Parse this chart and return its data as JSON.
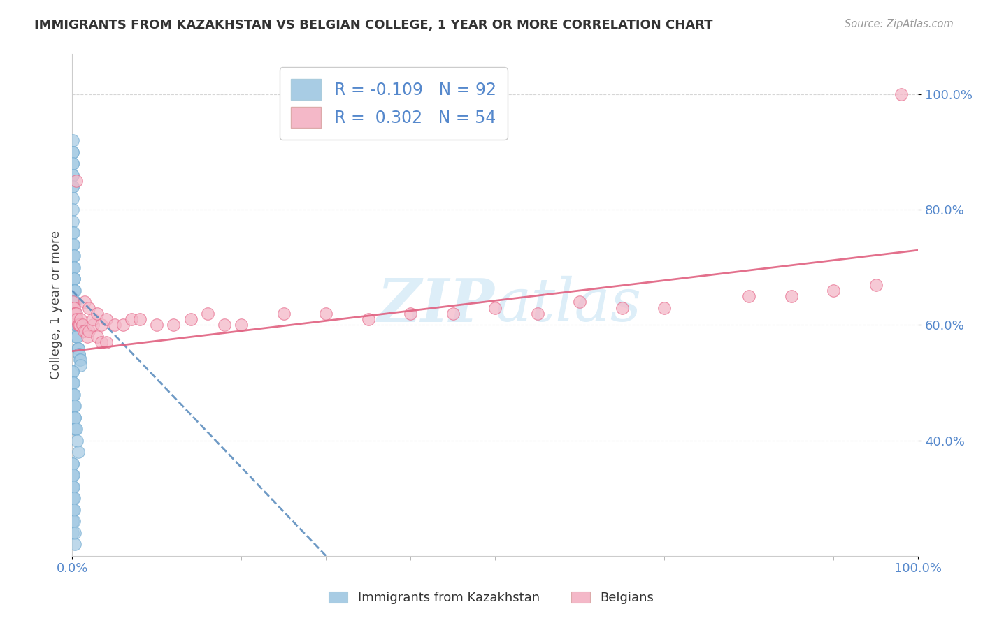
{
  "title": "IMMIGRANTS FROM KAZAKHSTAN VS BELGIAN COLLEGE, 1 YEAR OR MORE CORRELATION CHART",
  "source": "Source: ZipAtlas.com",
  "ylabel": "College, 1 year or more",
  "legend_label1": "Immigrants from Kazakhstan",
  "legend_label2": "Belgians",
  "R1": -0.109,
  "N1": 92,
  "R2": 0.302,
  "N2": 54,
  "color_blue": "#a8cce4",
  "color_blue_edge": "#7ab0d4",
  "color_pink": "#f4b8c8",
  "color_pink_edge": "#e87090",
  "color_blue_line": "#5588bb",
  "color_pink_line": "#e06080",
  "watermark_color": "#ddeef8",
  "tick_color": "#5588cc",
  "title_color": "#333333",
  "source_color": "#999999",
  "grid_color": "#cccccc",
  "xlim": [
    0.0,
    1.0
  ],
  "ylim": [
    0.2,
    1.07
  ],
  "yticks": [
    0.4,
    0.6,
    0.8,
    1.0
  ],
  "ytick_labels": [
    "40.0%",
    "60.0%",
    "80.0%",
    "100.0%"
  ],
  "blue_scatter_x": [
    0.0005,
    0.0005,
    0.0005,
    0.0005,
    0.0005,
    0.001,
    0.001,
    0.001,
    0.001,
    0.001,
    0.001,
    0.001,
    0.001,
    0.001,
    0.001,
    0.001,
    0.0015,
    0.0015,
    0.0015,
    0.0015,
    0.0015,
    0.0015,
    0.002,
    0.002,
    0.002,
    0.002,
    0.002,
    0.0025,
    0.0025,
    0.0025,
    0.003,
    0.003,
    0.003,
    0.0035,
    0.0035,
    0.004,
    0.004,
    0.0045,
    0.005,
    0.005,
    0.0055,
    0.006,
    0.0065,
    0.007,
    0.0075,
    0.008,
    0.0085,
    0.009,
    0.0095,
    0.01,
    0.0005,
    0.0005,
    0.0005,
    0.001,
    0.001,
    0.001,
    0.0015,
    0.0015,
    0.002,
    0.002,
    0.0025,
    0.0025,
    0.003,
    0.003,
    0.0035,
    0.0035,
    0.004,
    0.005,
    0.006,
    0.007,
    0.0005,
    0.0005,
    0.0005,
    0.0005,
    0.0005,
    0.0005,
    0.001,
    0.001,
    0.001,
    0.001,
    0.001,
    0.001,
    0.001,
    0.0015,
    0.0015,
    0.0015,
    0.0015,
    0.002,
    0.002,
    0.0025,
    0.003,
    0.0035
  ],
  "blue_scatter_y": [
    0.92,
    0.9,
    0.88,
    0.86,
    0.84,
    0.9,
    0.88,
    0.86,
    0.84,
    0.82,
    0.8,
    0.78,
    0.76,
    0.74,
    0.72,
    0.7,
    0.76,
    0.74,
    0.72,
    0.7,
    0.68,
    0.66,
    0.72,
    0.7,
    0.68,
    0.66,
    0.64,
    0.68,
    0.66,
    0.64,
    0.66,
    0.64,
    0.62,
    0.64,
    0.62,
    0.62,
    0.6,
    0.6,
    0.6,
    0.58,
    0.58,
    0.58,
    0.56,
    0.56,
    0.56,
    0.55,
    0.55,
    0.54,
    0.54,
    0.53,
    0.52,
    0.5,
    0.48,
    0.52,
    0.5,
    0.48,
    0.5,
    0.48,
    0.48,
    0.46,
    0.46,
    0.44,
    0.46,
    0.44,
    0.44,
    0.42,
    0.42,
    0.42,
    0.4,
    0.38,
    0.36,
    0.34,
    0.32,
    0.3,
    0.28,
    0.26,
    0.36,
    0.34,
    0.32,
    0.3,
    0.28,
    0.26,
    0.24,
    0.34,
    0.32,
    0.3,
    0.28,
    0.3,
    0.28,
    0.26,
    0.24,
    0.22
  ],
  "pink_scatter_x": [
    0.001,
    0.0015,
    0.002,
    0.0025,
    0.003,
    0.0035,
    0.004,
    0.005,
    0.006,
    0.007,
    0.008,
    0.009,
    0.01,
    0.012,
    0.014,
    0.016,
    0.018,
    0.02,
    0.025,
    0.03,
    0.035,
    0.04,
    0.015,
    0.02,
    0.025,
    0.03,
    0.035,
    0.04,
    0.05,
    0.06,
    0.07,
    0.08,
    0.1,
    0.12,
    0.14,
    0.16,
    0.18,
    0.2,
    0.25,
    0.3,
    0.35,
    0.4,
    0.45,
    0.5,
    0.55,
    0.6,
    0.65,
    0.7,
    0.8,
    0.85,
    0.9,
    0.95,
    0.005,
    0.98
  ],
  "pink_scatter_y": [
    0.64,
    0.63,
    0.63,
    0.62,
    0.62,
    0.61,
    0.61,
    0.62,
    0.61,
    0.6,
    0.6,
    0.6,
    0.61,
    0.6,
    0.59,
    0.59,
    0.58,
    0.59,
    0.6,
    0.58,
    0.57,
    0.57,
    0.64,
    0.63,
    0.61,
    0.62,
    0.6,
    0.61,
    0.6,
    0.6,
    0.61,
    0.61,
    0.6,
    0.6,
    0.61,
    0.62,
    0.6,
    0.6,
    0.62,
    0.62,
    0.61,
    0.62,
    0.62,
    0.63,
    0.62,
    0.64,
    0.63,
    0.63,
    0.65,
    0.65,
    0.66,
    0.67,
    0.85,
    1.0
  ],
  "blue_line_x": [
    0.0,
    0.3
  ],
  "blue_line_y_start": 0.66,
  "blue_line_y_end": 0.2,
  "pink_line_x": [
    0.0,
    1.0
  ],
  "pink_line_y_start": 0.555,
  "pink_line_y_end": 0.73
}
